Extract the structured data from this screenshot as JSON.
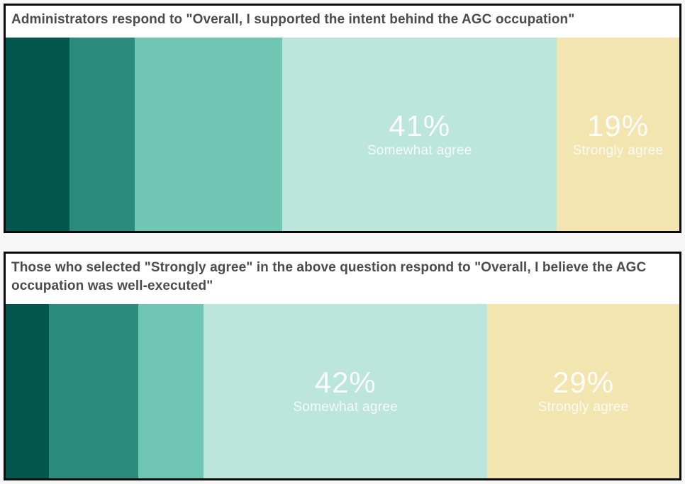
{
  "page": {
    "background_color": "#f7f7f7",
    "panel_background_color": "#ffffff",
    "panel_border_color": "#0b0b0b",
    "title_text_color": "#4c4c4c",
    "bar_label_text_color": "#fcfefd"
  },
  "chart_data": [
    {
      "type": "bar",
      "subtype": "100pct-stacked-horizontal-single-bar",
      "title": "Administrators respond to \"Overall, I supported the intent behind the AGC occupation\"",
      "legend": "none",
      "axes": "none",
      "xlim_pct": [
        0,
        100
      ],
      "segments": [
        {
          "category": "",
          "value_pct": 9,
          "display": null,
          "color": "#02564d",
          "width_pct": 9.5
        },
        {
          "category": "",
          "value_pct": 10,
          "display": null,
          "color": "#2b8c7e",
          "width_pct": 9.7
        },
        {
          "category": "",
          "value_pct": 22,
          "display": null,
          "color": "#6fc6b2",
          "width_pct": 21.9
        },
        {
          "category": "Somewhat agree",
          "value_pct": 41,
          "display": "41%",
          "color": "#bce5dc",
          "width_pct": 40.7
        },
        {
          "category": "Strongly agree",
          "value_pct": 19,
          "display": "19%",
          "color": "#f3e5af",
          "width_pct": 18.2
        }
      ]
    },
    {
      "type": "bar",
      "subtype": "100pct-stacked-horizontal-single-bar",
      "title": "Those who selected \"Strongly agree\" in the above question respond to \"Overall, I believe the AGC occupation was well-executed\"",
      "legend": "none",
      "axes": "none",
      "xlim_pct": [
        0,
        100
      ],
      "segments": [
        {
          "category": "",
          "value_pct": 6,
          "display": null,
          "color": "#02564d",
          "width_pct": 6.4
        },
        {
          "category": "",
          "value_pct": 13,
          "display": null,
          "color": "#2b8c7e",
          "width_pct": 13.3
        },
        {
          "category": "",
          "value_pct": 10,
          "display": null,
          "color": "#6fc6b2",
          "width_pct": 9.7
        },
        {
          "category": "Somewhat agree",
          "value_pct": 42,
          "display": "42%",
          "color": "#bce5dc",
          "width_pct": 42.1
        },
        {
          "category": "Strongly agree",
          "value_pct": 29,
          "display": "29%",
          "color": "#f3e5af",
          "width_pct": 28.5
        }
      ]
    }
  ]
}
